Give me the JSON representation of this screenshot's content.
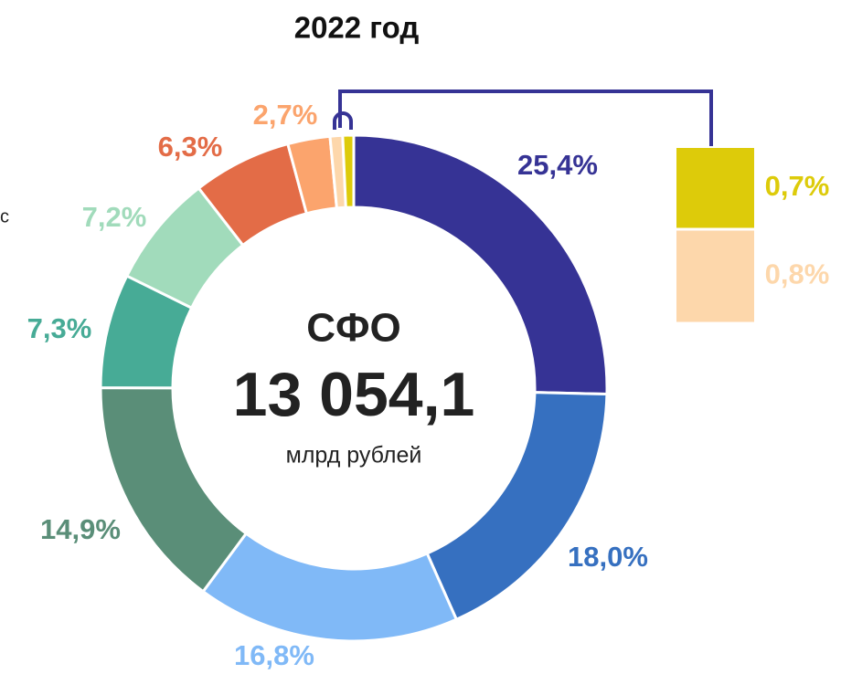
{
  "chart_data": {
    "type": "pie",
    "title": "2022 год",
    "center_title": "СФО",
    "center_value": "13 054,1",
    "center_unit": "млрд рублей",
    "side_text": "с",
    "values": [
      25.4,
      18.0,
      16.8,
      14.9,
      7.3,
      7.2,
      6.3,
      2.7,
      0.8,
      0.7
    ],
    "value_labels": [
      "25,4%",
      "18,0%",
      "16,8%",
      "14,9%",
      "7,3%",
      "7,2%",
      "6,3%",
      "2,7%",
      "0,8%",
      "0,7%"
    ],
    "colors": [
      "#363395",
      "#3670c0",
      "#80b9f7",
      "#5a8e78",
      "#47ab96",
      "#a1dbbb",
      "#e36c47",
      "#fba46d",
      "#fdd7ab",
      "#ddcb0a"
    ]
  }
}
